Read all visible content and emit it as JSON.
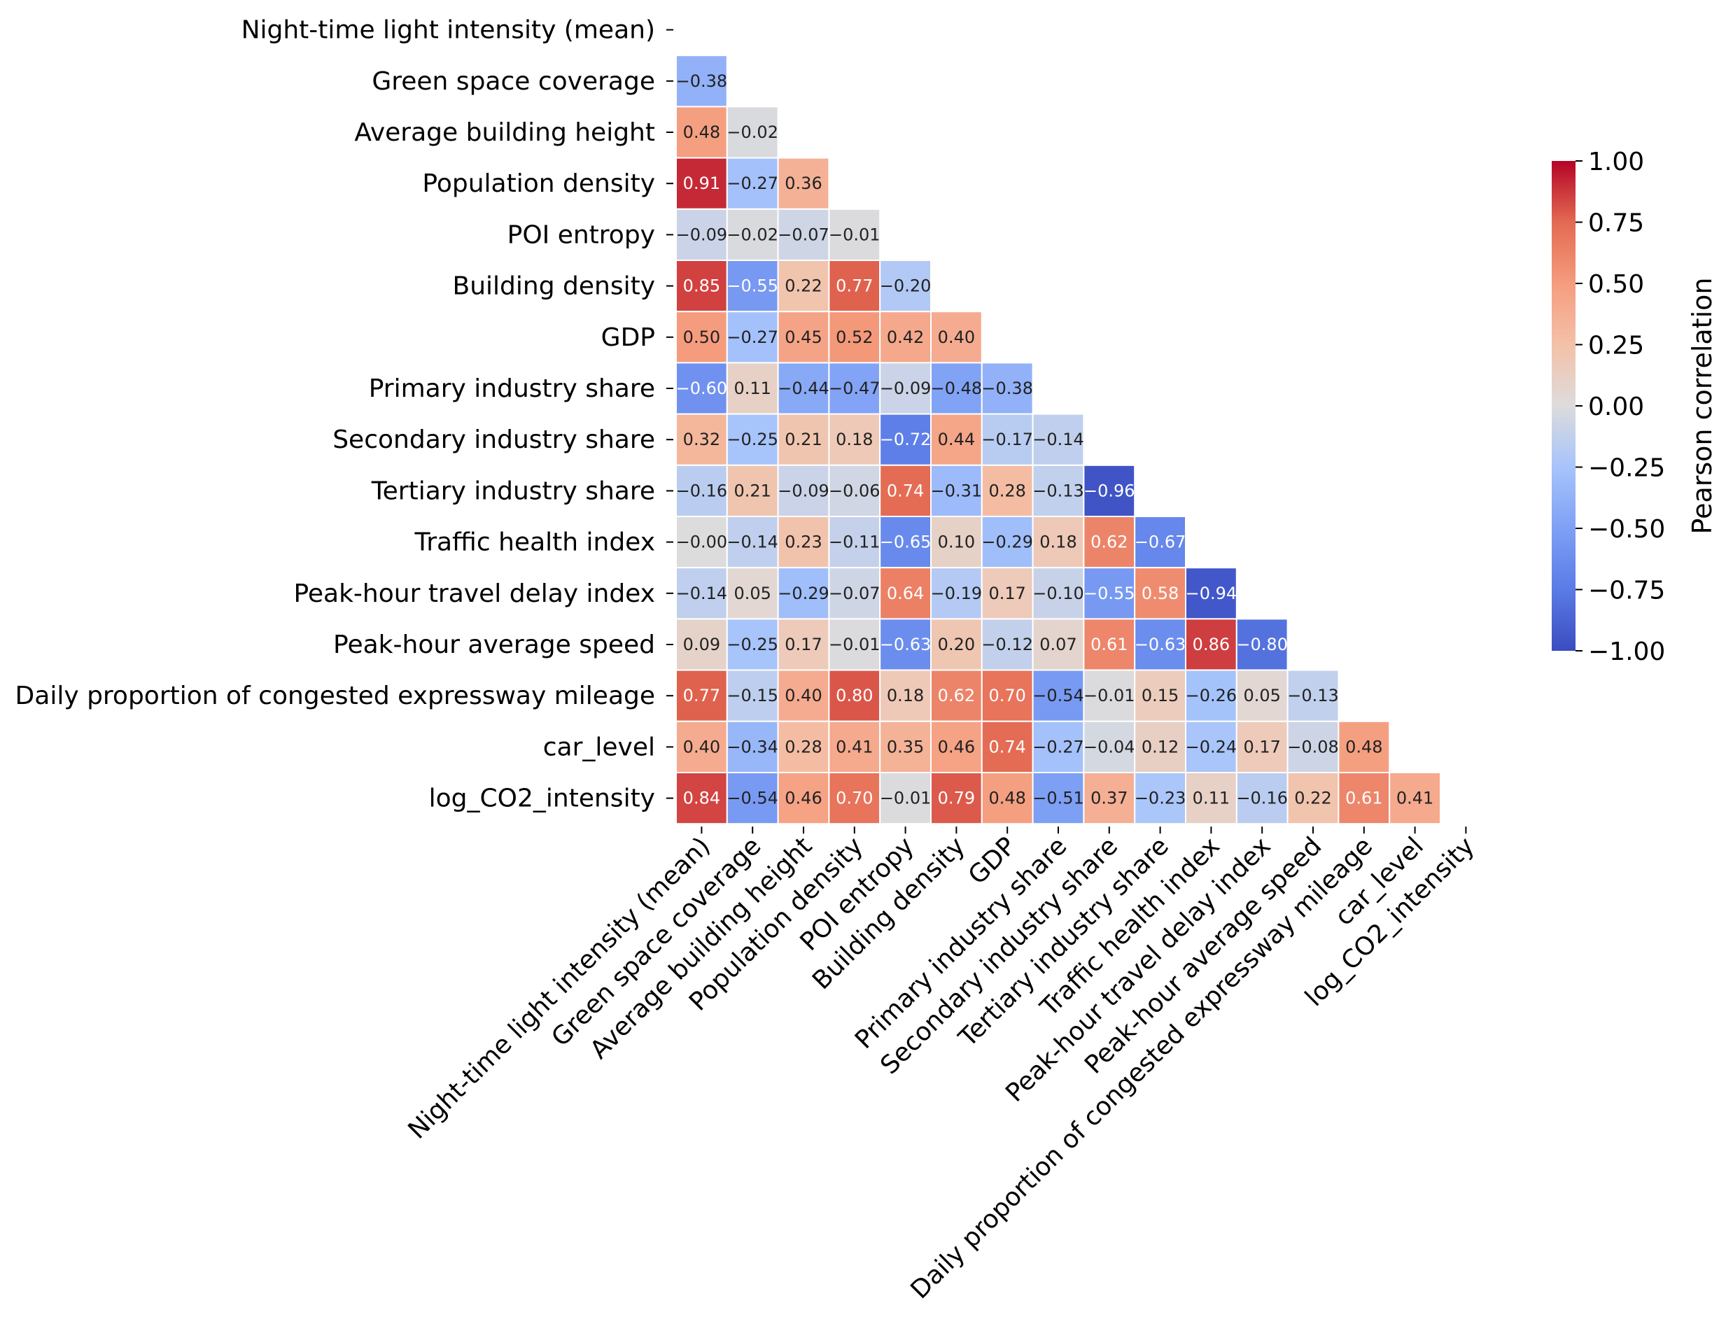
{
  "chart_data": {
    "type": "heatmap",
    "variant": "lower-triangle correlation matrix",
    "variables": [
      "Night-time light intensity (mean)",
      "Green space coverage",
      "Average building height",
      "Population density",
      "POI entropy",
      "Building density",
      "GDP",
      "Primary industry share",
      "Secondary industry share",
      "Tertiary industry share",
      "Traffic health index",
      "Peak-hour travel delay index",
      "Peak-hour average speed",
      "Daily proportion of congested expressway mileage",
      "car_level",
      "log_CO2_intensity"
    ],
    "matrix": [
      [],
      [
        -0.38
      ],
      [
        0.48,
        -0.02
      ],
      [
        0.91,
        -0.27,
        0.36
      ],
      [
        -0.09,
        -0.02,
        -0.07,
        -0.01
      ],
      [
        0.85,
        -0.55,
        0.22,
        0.77,
        -0.2
      ],
      [
        0.5,
        -0.27,
        0.45,
        0.52,
        0.42,
        0.4
      ],
      [
        -0.6,
        0.11,
        -0.44,
        -0.47,
        -0.09,
        -0.48,
        -0.38
      ],
      [
        0.32,
        -0.25,
        0.21,
        0.18,
        -0.72,
        0.44,
        -0.17,
        -0.14
      ],
      [
        -0.16,
        0.21,
        -0.09,
        -0.06,
        0.74,
        -0.31,
        0.28,
        -0.13,
        -0.96
      ],
      [
        -0.0,
        -0.14,
        0.23,
        -0.11,
        -0.65,
        0.1,
        -0.29,
        0.18,
        0.62,
        -0.67
      ],
      [
        -0.14,
        0.05,
        -0.29,
        -0.07,
        0.64,
        -0.19,
        0.17,
        -0.1,
        -0.55,
        0.58,
        -0.94
      ],
      [
        0.09,
        -0.25,
        0.17,
        -0.01,
        -0.63,
        0.2,
        -0.12,
        0.07,
        0.61,
        -0.63,
        0.86,
        -0.8
      ],
      [
        0.77,
        -0.15,
        0.4,
        0.8,
        0.18,
        0.62,
        0.7,
        -0.54,
        -0.01,
        0.15,
        -0.26,
        0.05,
        -0.13
      ],
      [
        0.4,
        -0.34,
        0.28,
        0.41,
        0.35,
        0.46,
        0.74,
        -0.27,
        -0.04,
        0.12,
        -0.24,
        0.17,
        -0.08,
        0.48
      ],
      [
        0.84,
        -0.54,
        0.46,
        0.7,
        -0.01,
        0.79,
        0.48,
        -0.51,
        0.37,
        -0.23,
        0.11,
        -0.16,
        0.22,
        0.61,
        0.41
      ]
    ],
    "value_format": "2 decimals, unicode minus",
    "colorbar": {
      "label": "Pearson correlation",
      "range": [
        -1.0,
        1.0
      ],
      "ticks": [
        "1.00",
        "0.75",
        "0.50",
        "0.25",
        "0.00",
        "−0.25",
        "−0.50",
        "−0.75",
        "−1.00"
      ],
      "colormap": "coolwarm",
      "colors": {
        "low": "#3b4cc0",
        "mid": "#dddddd",
        "high": "#b40426"
      }
    }
  }
}
